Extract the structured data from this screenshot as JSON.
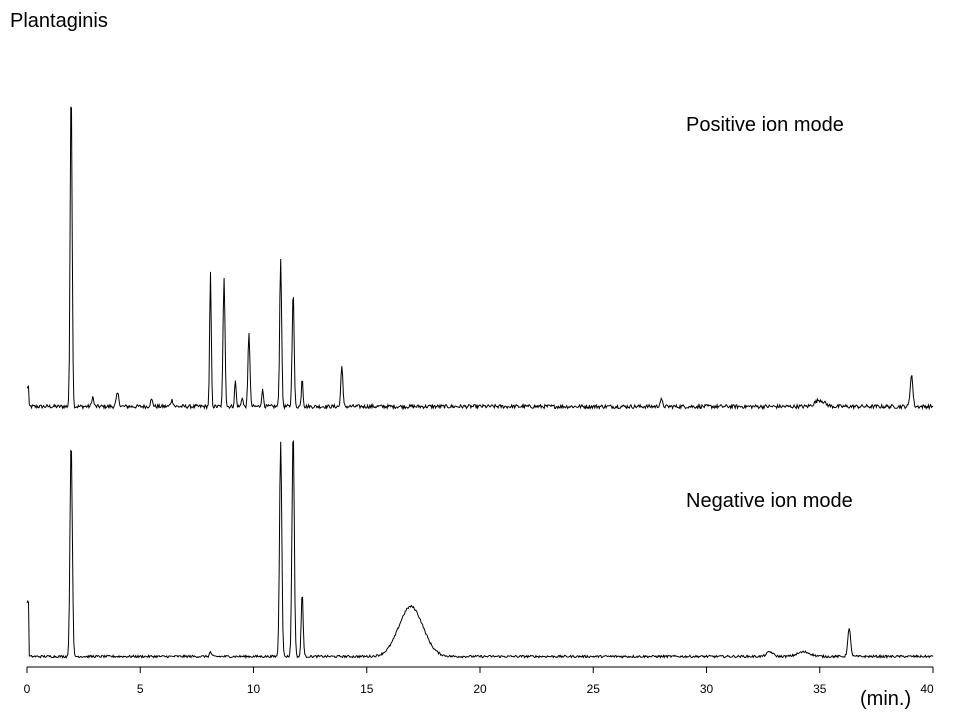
{
  "chart_data": {
    "type": "line",
    "title": "Plantaginis",
    "xlabel": "(min.)",
    "ylabel": "",
    "xlim": [
      0,
      40
    ],
    "x_ticks": [
      "0",
      "5",
      "10",
      "15",
      "20",
      "25",
      "30",
      "35",
      "40"
    ],
    "grid": false,
    "series": [
      {
        "name": "Positive ion mode",
        "baseline": 0.02,
        "noise": 0.012,
        "start_spike": 0.06,
        "peaks": [
          {
            "x": 1.95,
            "y": 1.0,
            "w": 0.06
          },
          {
            "x": 2.9,
            "y": 0.03,
            "w": 0.06
          },
          {
            "x": 4.0,
            "y": 0.04,
            "w": 0.08
          },
          {
            "x": 5.5,
            "y": 0.02,
            "w": 0.08
          },
          {
            "x": 6.4,
            "y": 0.02,
            "w": 0.08
          },
          {
            "x": 8.1,
            "y": 0.41,
            "w": 0.05
          },
          {
            "x": 8.7,
            "y": 0.4,
            "w": 0.06
          },
          {
            "x": 9.2,
            "y": 0.08,
            "w": 0.05
          },
          {
            "x": 9.5,
            "y": 0.03,
            "w": 0.05
          },
          {
            "x": 9.8,
            "y": 0.23,
            "w": 0.06
          },
          {
            "x": 10.4,
            "y": 0.05,
            "w": 0.06
          },
          {
            "x": 11.2,
            "y": 0.46,
            "w": 0.06
          },
          {
            "x": 11.75,
            "y": 0.36,
            "w": 0.06
          },
          {
            "x": 12.15,
            "y": 0.09,
            "w": 0.05
          },
          {
            "x": 13.9,
            "y": 0.13,
            "w": 0.06
          },
          {
            "x": 28.0,
            "y": 0.02,
            "w": 0.08
          },
          {
            "x": 35.0,
            "y": 0.02,
            "w": 0.3
          },
          {
            "x": 39.05,
            "y": 0.1,
            "w": 0.08
          }
        ]
      },
      {
        "name": "Negative ion mode",
        "baseline": 0.02,
        "noise": 0.01,
        "start_spike": 0.24,
        "peaks": [
          {
            "x": 1.95,
            "y": 0.96,
            "w": 0.07
          },
          {
            "x": 8.1,
            "y": 0.02,
            "w": 0.06
          },
          {
            "x": 11.2,
            "y": 0.95,
            "w": 0.07
          },
          {
            "x": 11.75,
            "y": 1.0,
            "w": 0.07
          },
          {
            "x": 12.15,
            "y": 0.28,
            "w": 0.06
          },
          {
            "x": 16.95,
            "y": 0.22,
            "w": 0.75
          },
          {
            "x": 32.8,
            "y": 0.02,
            "w": 0.2
          },
          {
            "x": 34.3,
            "y": 0.02,
            "w": 0.4
          },
          {
            "x": 36.3,
            "y": 0.12,
            "w": 0.09
          }
        ]
      }
    ]
  }
}
